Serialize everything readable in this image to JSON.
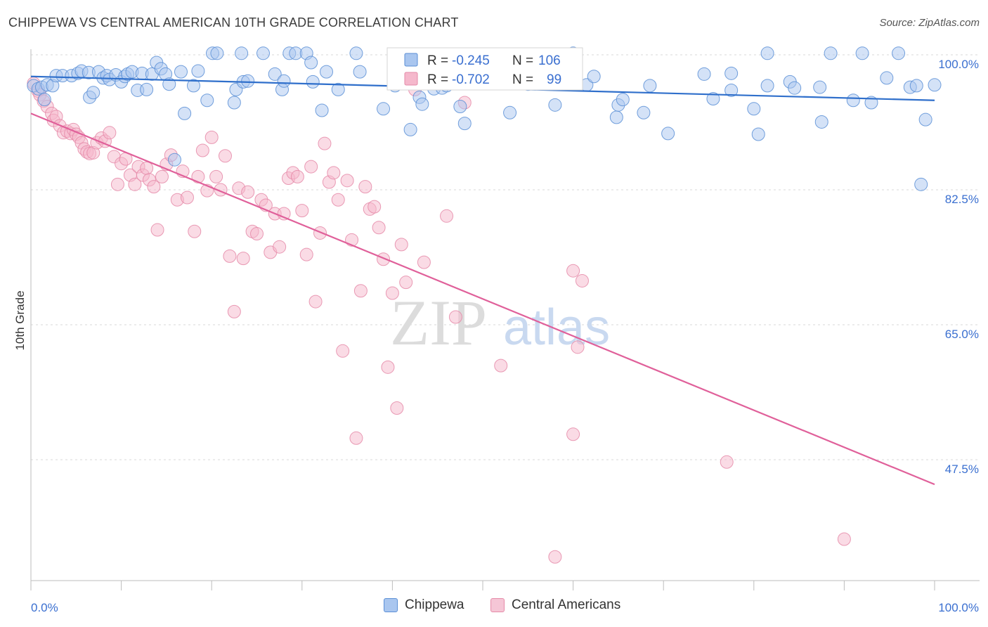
{
  "header": {
    "title": "CHIPPEWA VS CENTRAL AMERICAN 10TH GRADE CORRELATION CHART",
    "source": "Source: ZipAtlas.com"
  },
  "watermark": {
    "zip": "ZIP",
    "atlas": "atlas"
  },
  "legend_box": {
    "rows": [
      {
        "r_label": "R =",
        "r_value": "-0.245",
        "n_label": "N =",
        "n_value": "106"
      },
      {
        "r_label": "R =",
        "r_value": "-0.702",
        "n_label": "N =",
        "n_value": "99"
      }
    ]
  },
  "bottom_legend": {
    "items": [
      "Chippewa",
      "Central Americans"
    ]
  },
  "colors": {
    "blue_fill": "#a9c6ef",
    "blue_stroke": "#5b8fd6",
    "blue_line": "#2f6fcb",
    "pink_fill": "#f5b8cc",
    "pink_stroke": "#e58aa8",
    "pink_line": "#e0609a",
    "tick_label": "#3a6fd0",
    "grid": "#d9d9d9"
  },
  "chart_data": {
    "type": "scatter",
    "title": "CHIPPEWA VS CENTRAL AMERICAN 10TH GRADE CORRELATION CHART",
    "xlabel": "",
    "ylabel": "10th Grade",
    "xlim": [
      0,
      100
    ],
    "ylim": [
      30,
      102
    ],
    "x_tick_labels": [
      "0.0%",
      "100.0%"
    ],
    "y_ticks": [
      47.5,
      65.0,
      82.5,
      100.0
    ],
    "y_tick_labels": [
      "47.5%",
      "65.0%",
      "82.5%",
      "100.0%"
    ],
    "grid": true,
    "legend_position": "top-center",
    "series": [
      {
        "name": "Chippewa",
        "color": "#5b8fd6",
        "trend": {
          "x": [
            0,
            100
          ],
          "y": [
            97.2,
            94.1
          ]
        },
        "points": [
          [
            0.3,
            96.0
          ],
          [
            0.8,
            95.6
          ],
          [
            1.2,
            95.8
          ],
          [
            1.5,
            94.2
          ],
          [
            1.8,
            96.1
          ],
          [
            2.4,
            96.0
          ],
          [
            2.8,
            97.3
          ],
          [
            3.5,
            97.3
          ],
          [
            4.5,
            97.3
          ],
          [
            5.2,
            97.6
          ],
          [
            5.6,
            97.9
          ],
          [
            6.4,
            97.7
          ],
          [
            6.5,
            94.5
          ],
          [
            6.9,
            95.1
          ],
          [
            7.5,
            97.8
          ],
          [
            8.0,
            97.0
          ],
          [
            8.4,
            97.3
          ],
          [
            8.7,
            96.8
          ],
          [
            9.4,
            97.4
          ],
          [
            10.0,
            96.5
          ],
          [
            10.4,
            97.2
          ],
          [
            10.7,
            97.5
          ],
          [
            11.2,
            97.8
          ],
          [
            11.8,
            95.4
          ],
          [
            12.3,
            97.6
          ],
          [
            12.8,
            95.5
          ],
          [
            13.4,
            97.5
          ],
          [
            13.9,
            99.0
          ],
          [
            14.4,
            98.2
          ],
          [
            14.9,
            97.5
          ],
          [
            15.3,
            96.2
          ],
          [
            15.9,
            86.4
          ],
          [
            16.6,
            97.8
          ],
          [
            17.0,
            92.4
          ],
          [
            18.0,
            96.0
          ],
          [
            18.5,
            97.9
          ],
          [
            19.5,
            94.1
          ],
          [
            20.1,
            100.2
          ],
          [
            20.6,
            100.2
          ],
          [
            22.5,
            93.8
          ],
          [
            22.7,
            95.5
          ],
          [
            23.3,
            100.2
          ],
          [
            23.5,
            96.5
          ],
          [
            24.0,
            96.6
          ],
          [
            25.7,
            100.2
          ],
          [
            27.0,
            97.5
          ],
          [
            27.8,
            95.5
          ],
          [
            28.0,
            96.6
          ],
          [
            28.6,
            100.2
          ],
          [
            29.3,
            100.2
          ],
          [
            30.5,
            100.2
          ],
          [
            31.0,
            99.0
          ],
          [
            31.2,
            96.5
          ],
          [
            32.2,
            92.8
          ],
          [
            32.7,
            97.8
          ],
          [
            34.0,
            95.5
          ],
          [
            36.0,
            100.2
          ],
          [
            36.4,
            97.8
          ],
          [
            39.0,
            93.0
          ],
          [
            40.3,
            96.0
          ],
          [
            42.0,
            90.3
          ],
          [
            43.0,
            94.5
          ],
          [
            43.3,
            93.6
          ],
          [
            44.6,
            95.6
          ],
          [
            45.5,
            95.7
          ],
          [
            46.0,
            96.0
          ],
          [
            47.5,
            93.3
          ],
          [
            48.0,
            91.1
          ],
          [
            50.0,
            99.5
          ],
          [
            53.0,
            92.5
          ],
          [
            55.0,
            96.2
          ],
          [
            58.0,
            93.5
          ],
          [
            60.0,
            100.2
          ],
          [
            61.5,
            96.1
          ],
          [
            62.3,
            97.2
          ],
          [
            64.8,
            91.9
          ],
          [
            65.0,
            93.5
          ],
          [
            65.5,
            94.2
          ],
          [
            67.8,
            92.5
          ],
          [
            68.5,
            96.0
          ],
          [
            70.5,
            89.8
          ],
          [
            74.5,
            97.5
          ],
          [
            75.5,
            94.3
          ],
          [
            77.5,
            95.4
          ],
          [
            77.5,
            97.6
          ],
          [
            80.0,
            93.0
          ],
          [
            80.5,
            89.7
          ],
          [
            81.5,
            96.0
          ],
          [
            81.5,
            100.2
          ],
          [
            84.0,
            96.5
          ],
          [
            84.5,
            95.7
          ],
          [
            87.3,
            95.8
          ],
          [
            87.5,
            91.3
          ],
          [
            88.5,
            100.2
          ],
          [
            91.0,
            94.1
          ],
          [
            92.0,
            100.2
          ],
          [
            93.0,
            93.8
          ],
          [
            94.7,
            97.0
          ],
          [
            96.0,
            100.2
          ],
          [
            97.3,
            95.8
          ],
          [
            98.0,
            96.0
          ],
          [
            98.5,
            83.2
          ],
          [
            99.0,
            91.6
          ],
          [
            100.0,
            96.1
          ]
        ]
      },
      {
        "name": "Central Americans",
        "color": "#e58aa8",
        "trend": {
          "x": [
            0,
            100
          ],
          "y": [
            92.4,
            44.3
          ]
        },
        "points": [
          [
            0.3,
            96.3
          ],
          [
            0.8,
            95.3
          ],
          [
            1.0,
            94.8
          ],
          [
            1.4,
            94.0
          ],
          [
            1.8,
            93.3
          ],
          [
            2.3,
            92.4
          ],
          [
            2.5,
            91.5
          ],
          [
            2.8,
            92.0
          ],
          [
            3.2,
            90.8
          ],
          [
            3.6,
            89.9
          ],
          [
            4.0,
            90.1
          ],
          [
            4.4,
            89.8
          ],
          [
            4.7,
            90.3
          ],
          [
            5.0,
            89.7
          ],
          [
            5.3,
            89.3
          ],
          [
            5.6,
            88.6
          ],
          [
            5.9,
            87.8
          ],
          [
            6.2,
            87.4
          ],
          [
            6.5,
            87.2
          ],
          [
            6.9,
            87.3
          ],
          [
            7.3,
            88.6
          ],
          [
            7.8,
            89.2
          ],
          [
            8.2,
            88.8
          ],
          [
            8.7,
            89.9
          ],
          [
            9.2,
            86.8
          ],
          [
            9.6,
            83.2
          ],
          [
            10.0,
            85.9
          ],
          [
            10.5,
            86.5
          ],
          [
            11.0,
            84.4
          ],
          [
            11.5,
            83.2
          ],
          [
            11.9,
            85.5
          ],
          [
            12.4,
            84.4
          ],
          [
            12.8,
            85.3
          ],
          [
            13.1,
            83.8
          ],
          [
            13.6,
            82.9
          ],
          [
            14.0,
            77.3
          ],
          [
            14.5,
            84.2
          ],
          [
            15.0,
            85.8
          ],
          [
            15.5,
            87.0
          ],
          [
            16.2,
            81.2
          ],
          [
            16.8,
            84.9
          ],
          [
            17.3,
            81.5
          ],
          [
            18.1,
            77.1
          ],
          [
            18.5,
            84.2
          ],
          [
            19.0,
            87.6
          ],
          [
            19.5,
            82.4
          ],
          [
            20.0,
            89.3
          ],
          [
            20.5,
            84.2
          ],
          [
            21.0,
            82.5
          ],
          [
            21.5,
            86.9
          ],
          [
            22.0,
            73.9
          ],
          [
            22.5,
            66.7
          ],
          [
            23.0,
            82.7
          ],
          [
            23.5,
            73.6
          ],
          [
            24.0,
            82.2
          ],
          [
            24.5,
            77.1
          ],
          [
            25.0,
            76.8
          ],
          [
            25.5,
            81.2
          ],
          [
            26.0,
            80.5
          ],
          [
            26.5,
            74.4
          ],
          [
            27.0,
            79.4
          ],
          [
            27.5,
            75.1
          ],
          [
            28.0,
            79.4
          ],
          [
            28.5,
            84.0
          ],
          [
            29.0,
            84.7
          ],
          [
            29.5,
            84.2
          ],
          [
            30.0,
            79.8
          ],
          [
            30.5,
            74.1
          ],
          [
            31.0,
            85.5
          ],
          [
            31.5,
            68.0
          ],
          [
            32.0,
            76.9
          ],
          [
            32.5,
            88.5
          ],
          [
            33.0,
            83.5
          ],
          [
            33.5,
            84.7
          ],
          [
            34.0,
            81.2
          ],
          [
            34.5,
            61.6
          ],
          [
            35.0,
            83.7
          ],
          [
            35.5,
            76.0
          ],
          [
            36.0,
            50.3
          ],
          [
            36.5,
            69.4
          ],
          [
            37.0,
            82.9
          ],
          [
            37.5,
            80.0
          ],
          [
            38.0,
            80.3
          ],
          [
            38.5,
            77.6
          ],
          [
            39.0,
            73.5
          ],
          [
            39.5,
            59.5
          ],
          [
            40.0,
            69.1
          ],
          [
            40.5,
            54.2
          ],
          [
            41.0,
            75.4
          ],
          [
            41.5,
            70.5
          ],
          [
            42.5,
            95.5
          ],
          [
            43.5,
            73.1
          ],
          [
            46.0,
            79.1
          ],
          [
            47.0,
            66.0
          ],
          [
            48.0,
            93.8
          ],
          [
            52.0,
            59.7
          ],
          [
            60.0,
            72.0
          ],
          [
            60.0,
            50.8
          ],
          [
            60.5,
            62.1
          ],
          [
            61.0,
            70.7
          ],
          [
            77.0,
            47.2
          ],
          [
            90.0,
            37.2
          ],
          [
            58.0,
            34.9
          ]
        ]
      }
    ]
  }
}
